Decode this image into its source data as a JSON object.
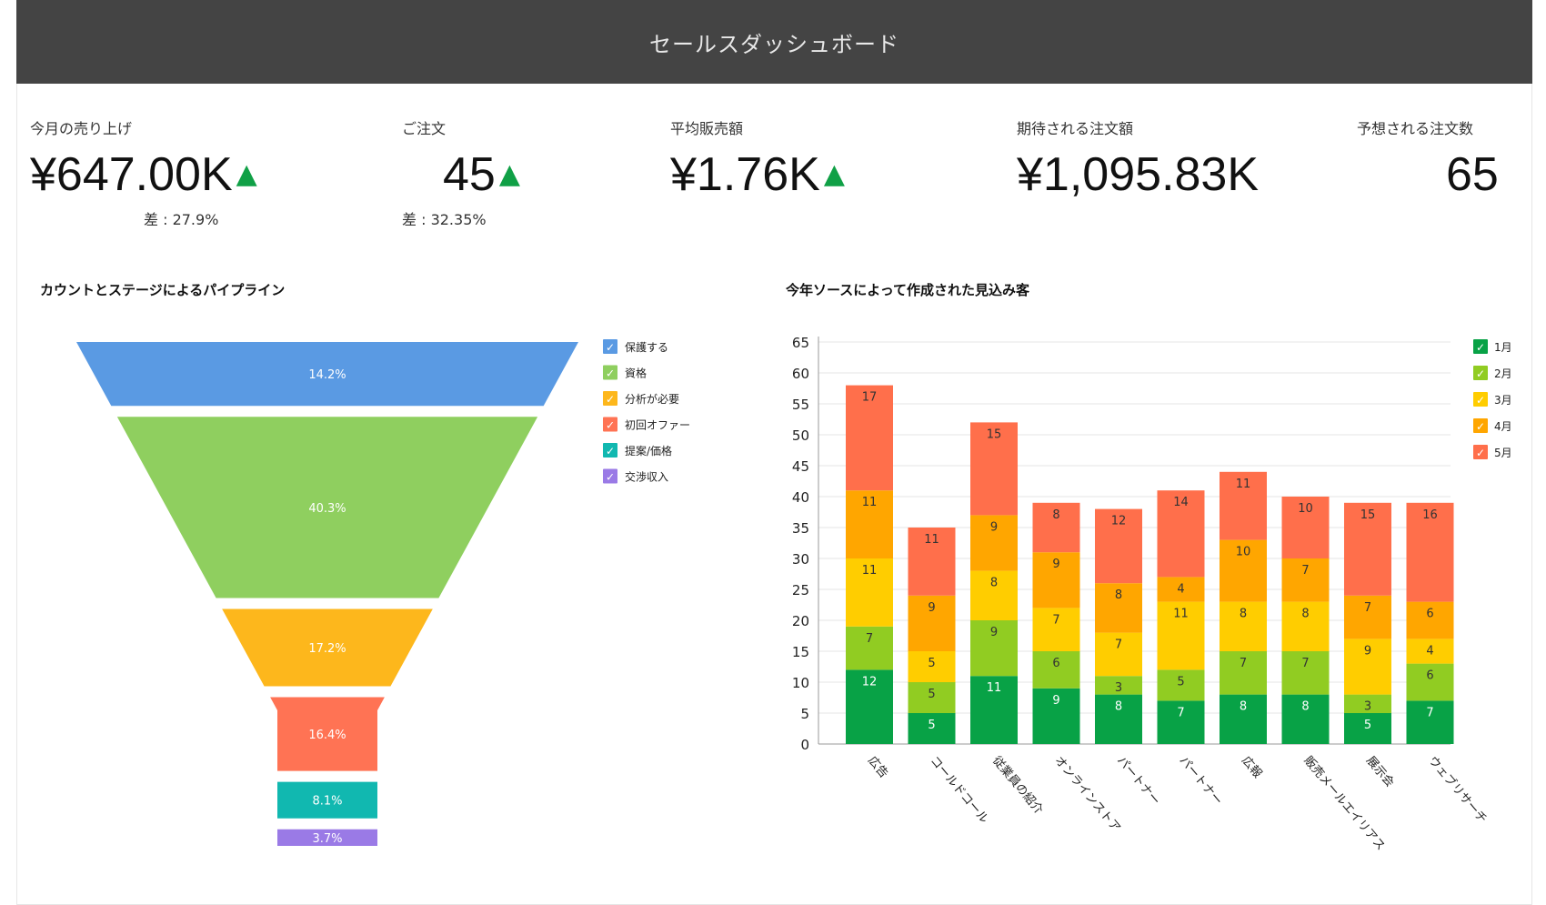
{
  "header": {
    "title": "セールスダッシュボード"
  },
  "kpis": [
    {
      "label": "今月の売り上げ",
      "value": "¥647.00K",
      "trend": "up",
      "diff": "差 : 27.9%"
    },
    {
      "label": "ご注文",
      "value": "45",
      "trend": "up",
      "diff": "差 : 32.35%"
    },
    {
      "label": "平均販売額",
      "value": "¥1.76K",
      "trend": "up",
      "diff": ""
    },
    {
      "label": "期待される注文額",
      "value": "¥1,095.83K",
      "trend": "",
      "diff": ""
    },
    {
      "label": "予想される注文数",
      "value": "65",
      "trend": "",
      "diff": ""
    }
  ],
  "colors": {
    "up_arrow": "#10a046",
    "header_bg": "#444444"
  },
  "chart_data": [
    {
      "type": "funnel",
      "title": "カウントとステージによるパイプライン",
      "legend_position": "right",
      "stages": [
        {
          "name": "保護する",
          "value_label": "14.2%",
          "value": 14.2,
          "color": "#5a9ae3"
        },
        {
          "name": "資格",
          "value_label": "40.3%",
          "value": 40.3,
          "color": "#8fcf5f"
        },
        {
          "name": "分析が必要",
          "value_label": "17.2%",
          "value": 17.2,
          "color": "#fdb71c"
        },
        {
          "name": "初回オファー",
          "value_label": "16.4%",
          "value": 16.4,
          "color": "#ff7354"
        },
        {
          "name": "提案/価格",
          "value_label": "8.1%",
          "value": 8.1,
          "color": "#11b8b0"
        },
        {
          "name": "交渉収入",
          "value_label": "3.7%",
          "value": 3.7,
          "color": "#9a7ae6"
        }
      ]
    },
    {
      "type": "bar",
      "stacked": true,
      "title": "今年ソースによって作成された見込み客",
      "categories": [
        "広告",
        "コールドコール",
        "従業員の紹介",
        "オンラインストア",
        "パートナー",
        "パートナー",
        "広報",
        "販売メールエイリアス",
        "展示会",
        "ウェブリサーチ"
      ],
      "series": [
        {
          "name": "1月",
          "color": "#08a246",
          "values": [
            12,
            5,
            11,
            9,
            8,
            7,
            8,
            8,
            5,
            7
          ]
        },
        {
          "name": "2月",
          "color": "#91cc22",
          "values": [
            7,
            5,
            9,
            6,
            3,
            5,
            7,
            7,
            3,
            6
          ]
        },
        {
          "name": "3月",
          "color": "#ffcd00",
          "values": [
            11,
            5,
            8,
            7,
            7,
            11,
            8,
            8,
            9,
            4
          ]
        },
        {
          "name": "4月",
          "color": "#ffa600",
          "values": [
            11,
            9,
            9,
            9,
            8,
            4,
            10,
            7,
            7,
            6
          ]
        },
        {
          "name": "5月",
          "color": "#ff6f4b",
          "values": [
            17,
            11,
            15,
            8,
            12,
            14,
            11,
            10,
            15,
            16
          ]
        }
      ],
      "yticks": [
        0,
        5,
        10,
        15,
        20,
        25,
        30,
        35,
        40,
        45,
        50,
        55,
        60,
        65
      ],
      "ylim": [
        0,
        65
      ],
      "grid": true,
      "legend_position": "top-right"
    }
  ]
}
